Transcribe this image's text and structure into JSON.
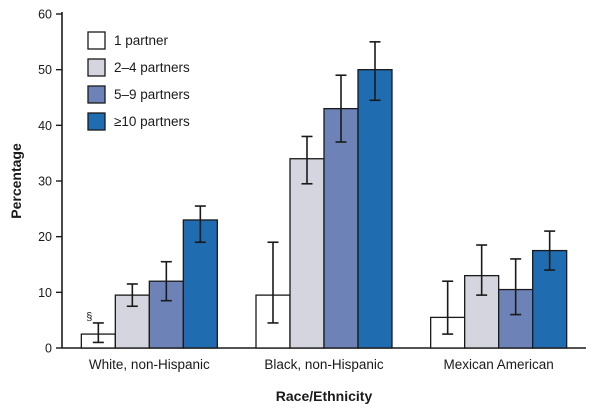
{
  "chart_data": {
    "type": "bar",
    "title": "",
    "xlabel": "Race/Ethnicity",
    "ylabel": "Percentage",
    "ylim": [
      0,
      60
    ],
    "yticks": [
      0,
      10,
      20,
      30,
      40,
      50,
      60
    ],
    "grid": false,
    "legend_position": "top-left",
    "categories": [
      "White, non-Hispanic",
      "Black, non-Hispanic",
      "Mexican American"
    ],
    "series": [
      {
        "name": "1 partner",
        "color": "#ffffff",
        "values": [
          2.5,
          9.5,
          5.5
        ],
        "err_low": [
          1.0,
          4.5,
          2.5
        ],
        "err_high": [
          4.5,
          19.0,
          12.0
        ]
      },
      {
        "name": "2–4 partners",
        "color": "#d4d5de",
        "values": [
          9.5,
          34.0,
          13.0
        ],
        "err_low": [
          7.5,
          29.5,
          9.5
        ],
        "err_high": [
          11.5,
          38.0,
          18.5
        ]
      },
      {
        "name": "5–9 partners",
        "color": "#6d83b8",
        "values": [
          12.0,
          43.0,
          10.5
        ],
        "err_low": [
          8.5,
          37.0,
          6.0
        ],
        "err_high": [
          15.5,
          49.0,
          16.0
        ]
      },
      {
        "name": "≥10 partners",
        "color": "#1f6cb0",
        "values": [
          23.0,
          50.0,
          17.5
        ],
        "err_low": [
          19.0,
          44.5,
          14.0
        ],
        "err_high": [
          25.5,
          55.0,
          21.0
        ]
      }
    ],
    "annotations": [
      {
        "text": "§",
        "category": 0,
        "series": 0
      }
    ],
    "colors": {
      "axis": "#1a1a1a",
      "bar_stroke": "#1a1a1a",
      "error_bar": "#1a1a1a",
      "text": "#1a1a1a"
    }
  }
}
